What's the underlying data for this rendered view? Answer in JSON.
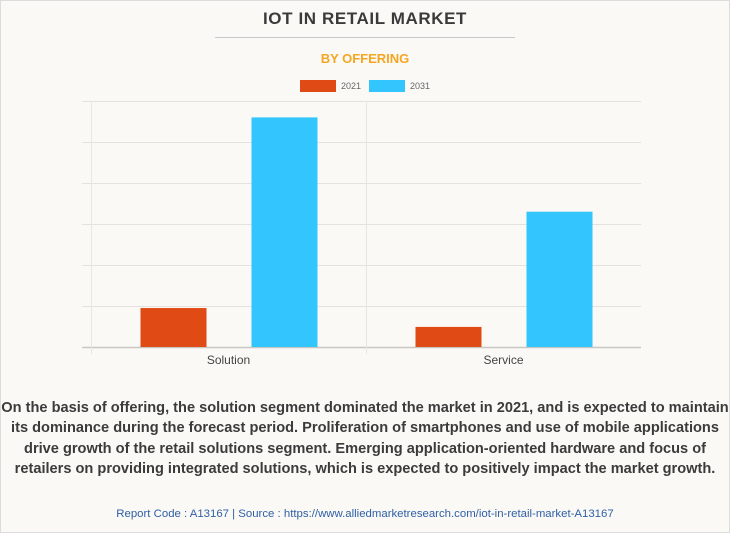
{
  "header": {
    "title": "IOT IN RETAIL MARKET",
    "subtitle": "BY OFFERING"
  },
  "chart_data": {
    "type": "bar",
    "title": "IOT IN RETAIL MARKET",
    "subtitle": "BY OFFERING",
    "categories": [
      "Solution",
      "Service"
    ],
    "series": [
      {
        "name": "2021",
        "color": "#e04a15",
        "values": [
          0.95,
          0.49
        ]
      },
      {
        "name": "2031",
        "color": "#33c5fd",
        "values": [
          5.6,
          3.3
        ]
      }
    ],
    "xlabel": "",
    "ylabel": "",
    "ylim": [
      0,
      6
    ],
    "y_units": "relative (gridline units, no axis labels shown)",
    "grid": true,
    "legend_position": "top-center"
  },
  "caption": {
    "text": "On the basis of offering, the solution segment dominated the market in 2021, and is expected to maintain its dominance during the forecast period. Proliferation of smartphones and use of mobile applications drive growth of the retail solutions segment. Emerging application-oriented hardware and focus of retailers on providing integrated solutions, which is expected to positively impact the market growth."
  },
  "footer": {
    "source": "Report Code : A13167  |  Source : https://www.alliedmarketresearch.com/iot-in-retail-market-A13167"
  }
}
